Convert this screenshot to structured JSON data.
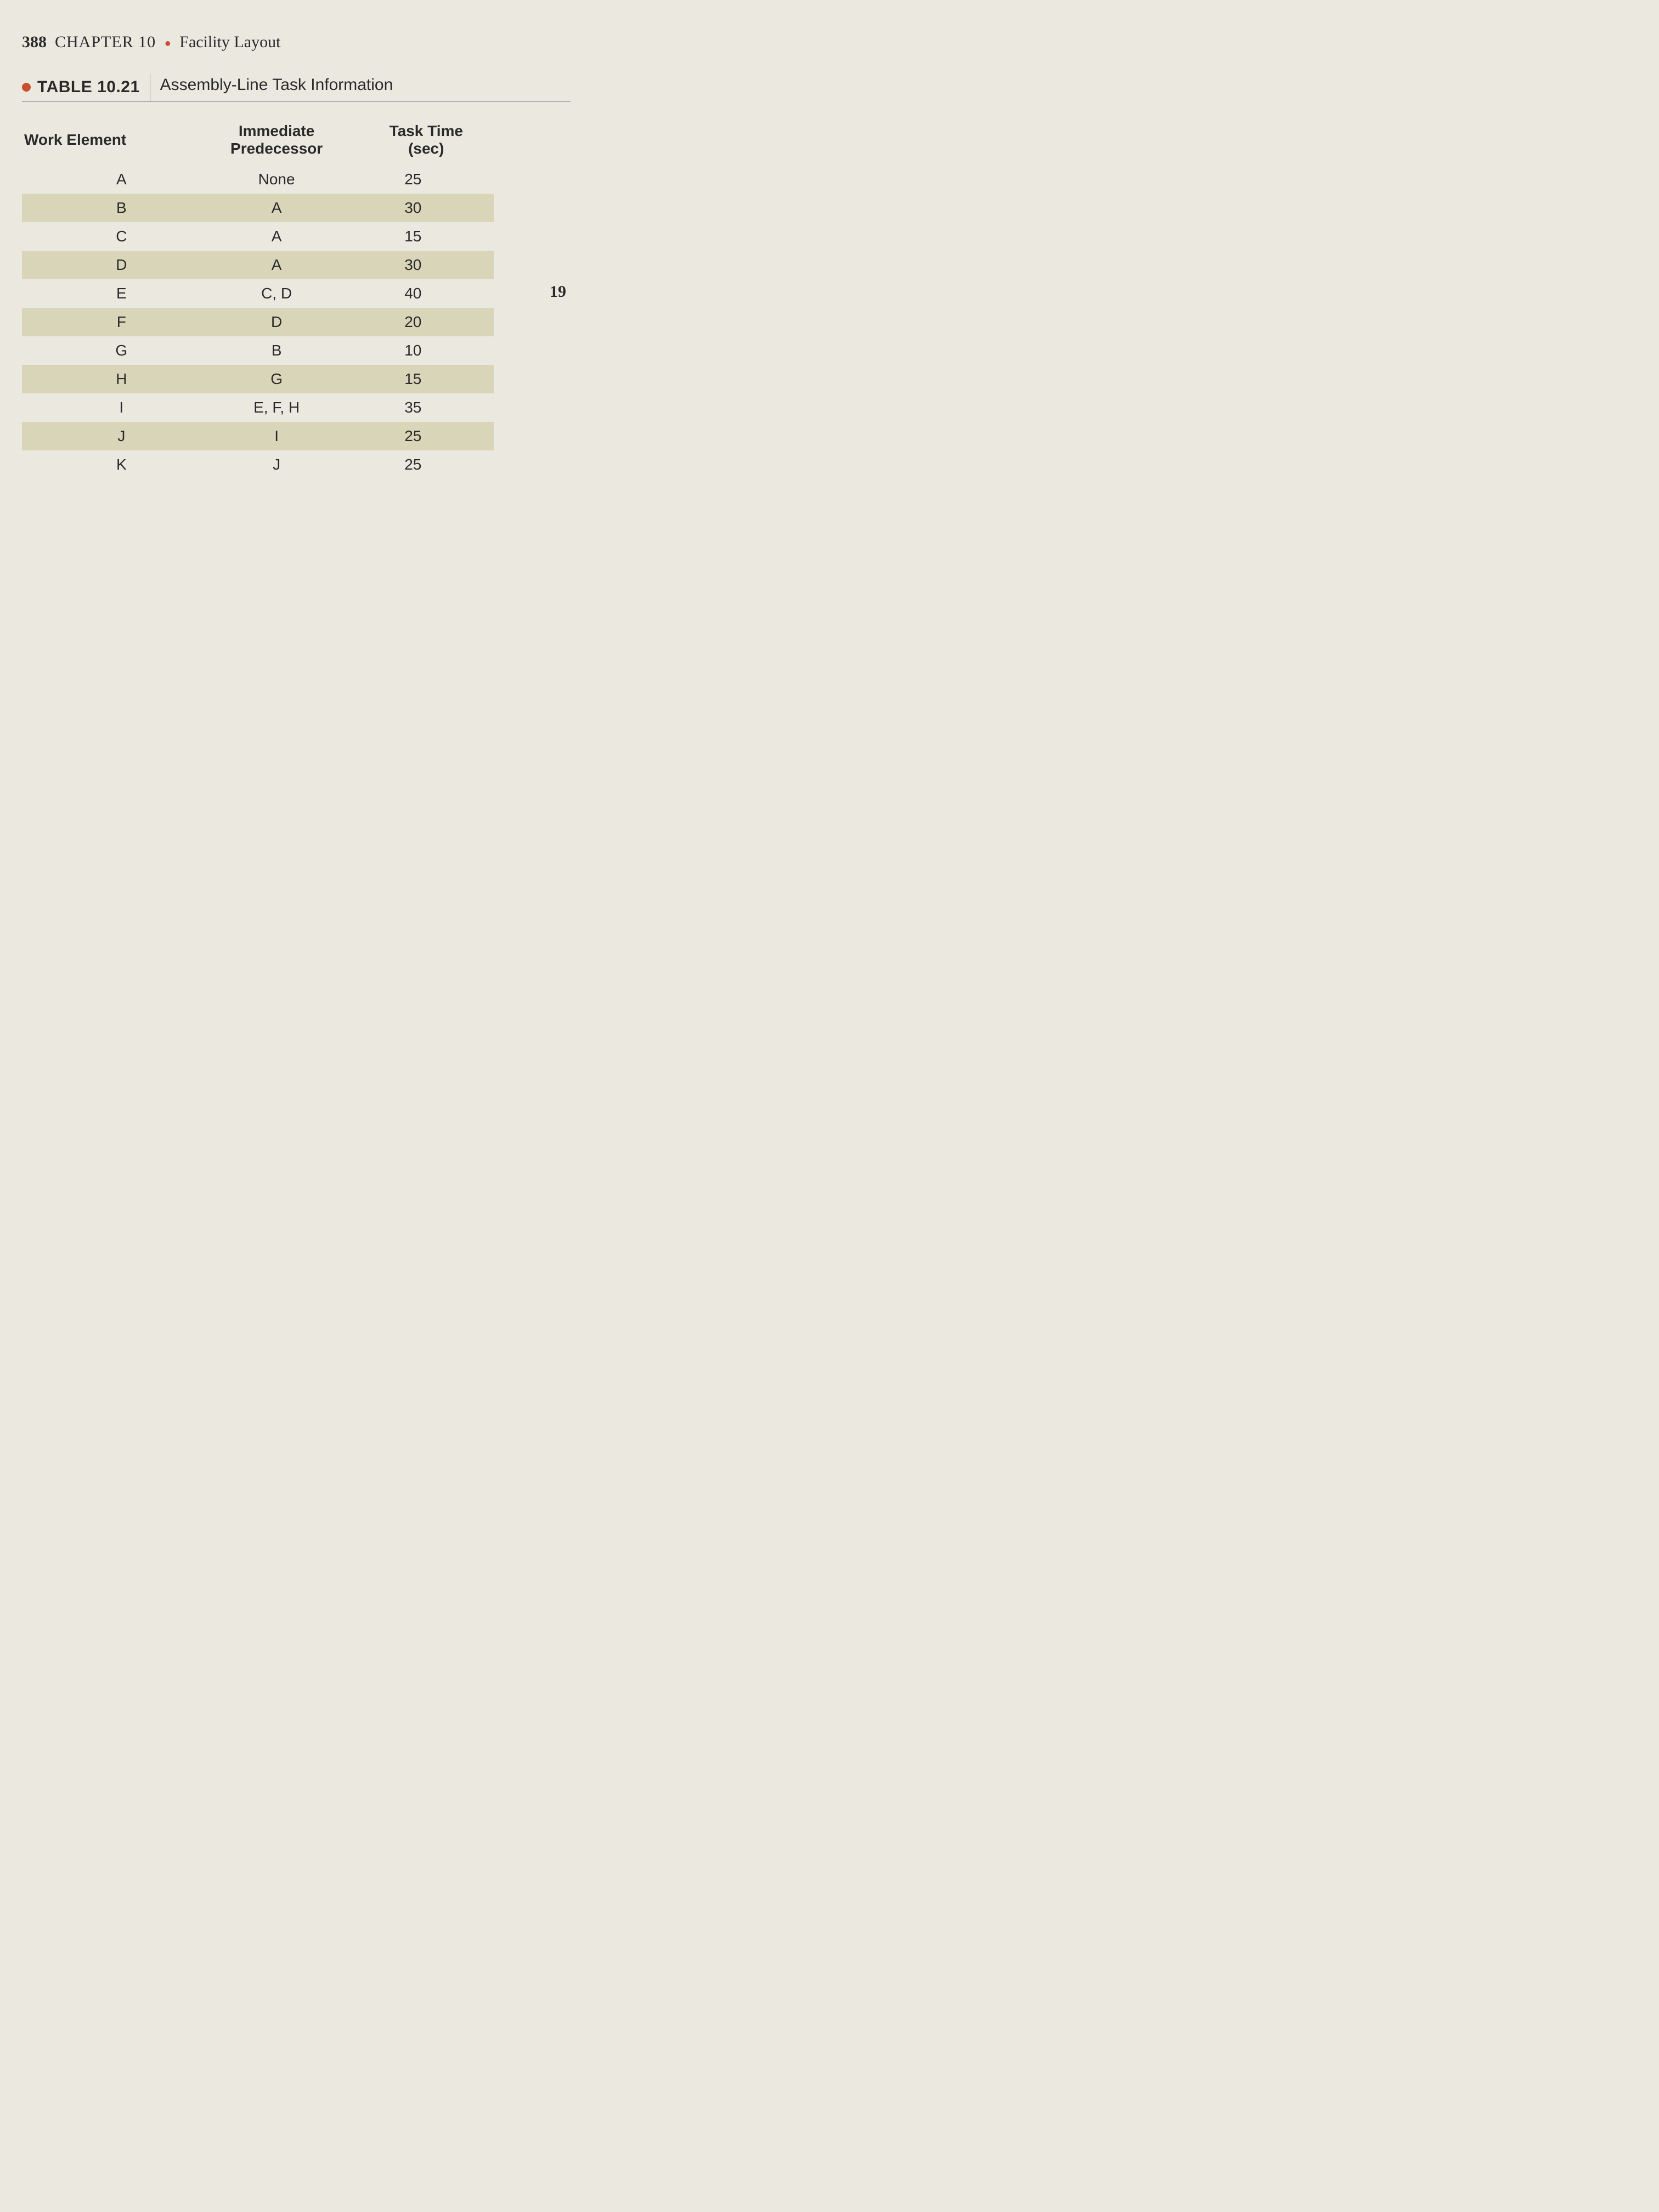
{
  "header": {
    "page_number": "388",
    "chapter_label": "CHAPTER 10",
    "chapter_title": "Facility Layout"
  },
  "table": {
    "label": "TABLE 10.21",
    "caption": "Assembly-Line Task Information",
    "columns": [
      "Work Element",
      "Immediate Predecessor",
      "Task Time (sec)"
    ],
    "col_header_lines": {
      "col1": "Work Element",
      "col2_line1": "Immediate",
      "col2_line2": "Predecessor",
      "col3_line1": "Task Time",
      "col3_line2": "(sec)"
    },
    "rows": [
      {
        "element": "A",
        "predecessor": "None",
        "time": "25",
        "shaded": false
      },
      {
        "element": "B",
        "predecessor": "A",
        "time": "30",
        "shaded": true
      },
      {
        "element": "C",
        "predecessor": "A",
        "time": "15",
        "shaded": false
      },
      {
        "element": "D",
        "predecessor": "A",
        "time": "30",
        "shaded": true
      },
      {
        "element": "E",
        "predecessor": "C, D",
        "time": "40",
        "shaded": false
      },
      {
        "element": "F",
        "predecessor": "D",
        "time": "20",
        "shaded": true
      },
      {
        "element": "G",
        "predecessor": "B",
        "time": "10",
        "shaded": false
      },
      {
        "element": "H",
        "predecessor": "G",
        "time": "15",
        "shaded": true
      },
      {
        "element": "I",
        "predecessor": "E, F, H",
        "time": "35",
        "shaded": false
      },
      {
        "element": "J",
        "predecessor": "I",
        "time": "25",
        "shaded": true
      },
      {
        "element": "K",
        "predecessor": "J",
        "time": "25",
        "shaded": false
      }
    ],
    "row_shade_color": "#d9d5b8",
    "accent_color": "#c94f2e",
    "background_color": "#ebe8e0",
    "text_color": "#2a2a2a"
  },
  "margin_fragment": "19"
}
